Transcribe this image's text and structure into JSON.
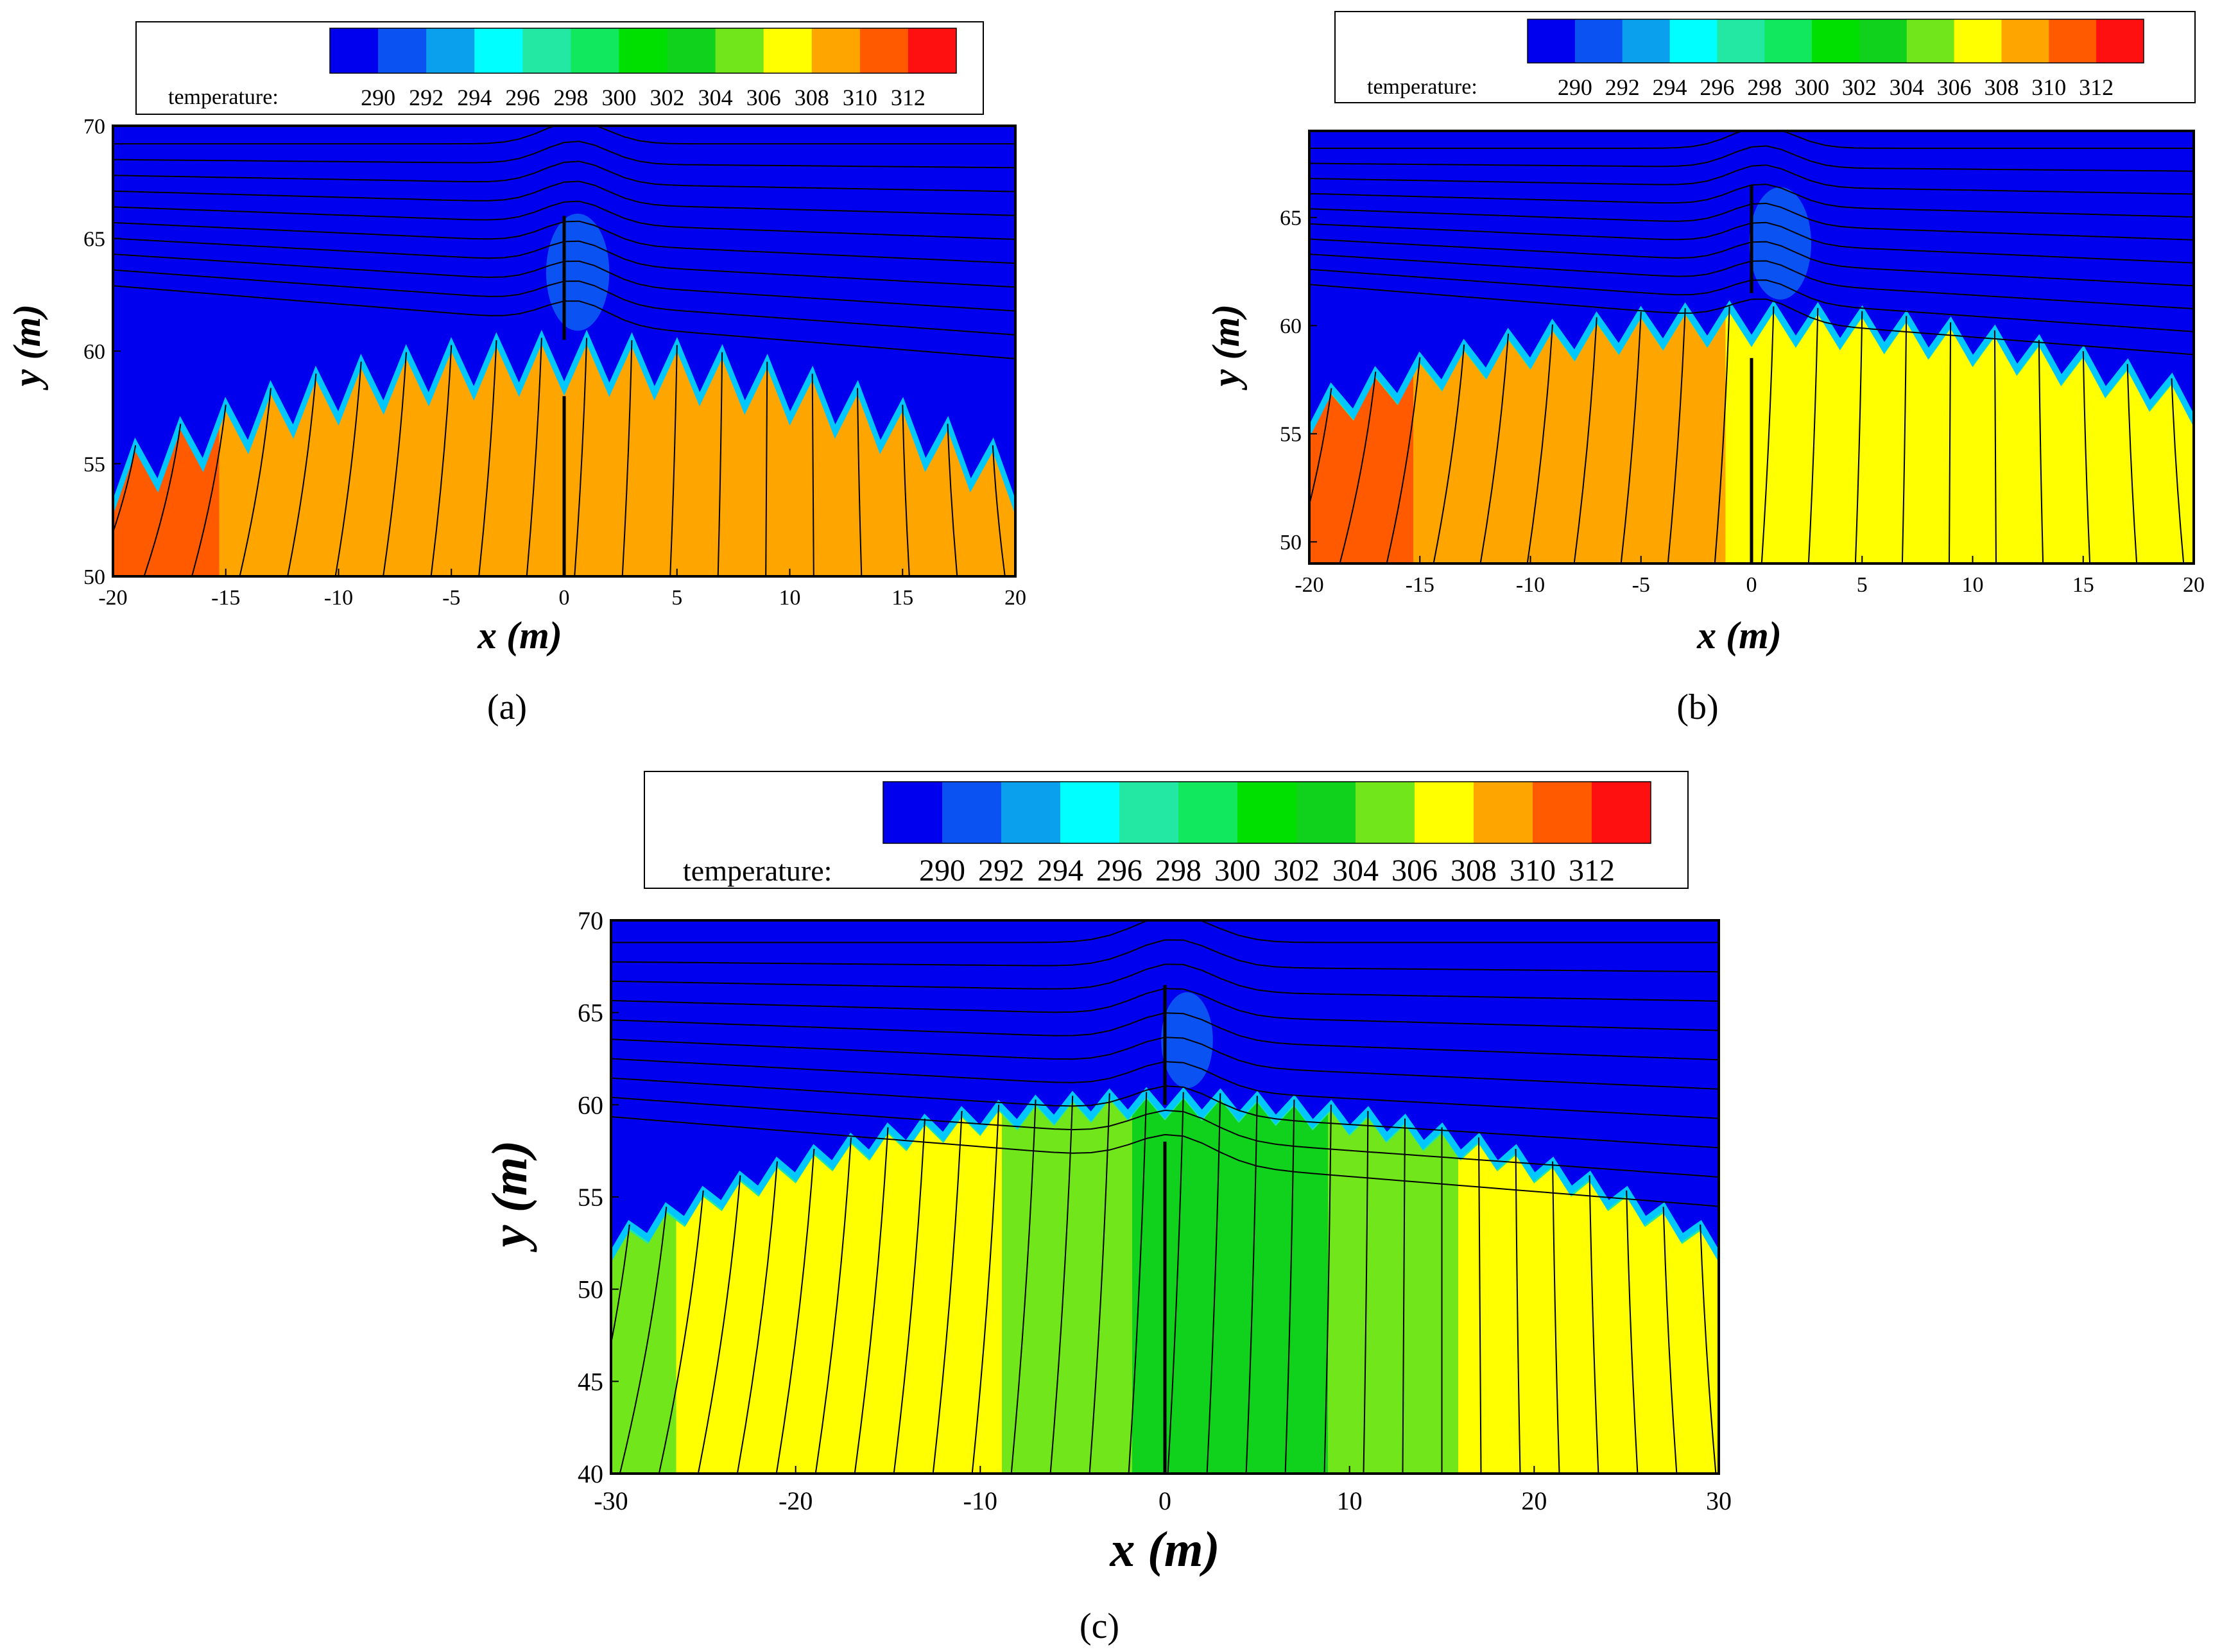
{
  "colorbar": {
    "label": "temperature:",
    "ticks": [
      "290",
      "292",
      "294",
      "296",
      "298",
      "300",
      "302",
      "304",
      "306",
      "308",
      "310",
      "312"
    ],
    "colors": [
      "#0000ee",
      "#0b52f2",
      "#0aa0ee",
      "#00ffff",
      "#22e8a4",
      "#12e85e",
      "#00e000",
      "#10d11b",
      "#70e61b",
      "#ffff00",
      "#ffa500",
      "#ff5a00",
      "#ff1010"
    ]
  },
  "palette": {
    "cold": "#0000ee",
    "frame": "#000000",
    "streamline": "#000000"
  },
  "chart_data": [
    {
      "id": "a",
      "type": "heatmap",
      "caption": "(a)",
      "xlabel": "x (m)",
      "ylabel": "y (m)",
      "xlim": [
        -20,
        20
      ],
      "ylim": [
        50,
        70
      ],
      "xticks": [
        "-20",
        "-15",
        "-10",
        "-5",
        "0",
        "5",
        "10",
        "15",
        "20"
      ],
      "yticks": [
        "50",
        "55",
        "60",
        "65",
        "70"
      ],
      "colorbar_ticks": [
        "290",
        "292",
        "294",
        "296",
        "298",
        "300",
        "302",
        "304",
        "306",
        "308",
        "310",
        "312"
      ],
      "colorbar_label": "temperature:",
      "canopy_profile": {
        "left_y": 55.3,
        "peak_y": 60.6,
        "right_y": 55.3,
        "teeth": 20,
        "tooth_depth_m": 2.3
      },
      "interior_temperature": [
        311,
        310,
        309.5,
        309,
        309,
        309,
        309,
        309,
        309,
        309,
        309,
        309,
        309,
        309,
        309,
        309,
        309
      ],
      "barrier": {
        "x": 0,
        "y_bottom": 50,
        "y_top": 66,
        "gap": [
          58,
          60.5
        ]
      },
      "wake_zone": {
        "x": 0.6,
        "y": 63.5,
        "temp": 291
      }
    },
    {
      "id": "b",
      "type": "heatmap",
      "caption": "(b)",
      "xlabel": "x (m)",
      "ylabel": "y (m)",
      "xlim": [
        -20,
        20
      ],
      "ylim": [
        49,
        69
      ],
      "xticks": [
        "-20",
        "-15",
        "-10",
        "-5",
        "0",
        "5",
        "10",
        "15",
        "20"
      ],
      "yticks": [
        "50",
        "55",
        "60",
        "65"
      ],
      "colorbar_ticks": [
        "290",
        "292",
        "294",
        "296",
        "298",
        "300",
        "302",
        "304",
        "306",
        "308",
        "310",
        "312"
      ],
      "colorbar_label": "temperature:",
      "canopy_profile": {
        "left_y": 56.7,
        "peak_y": 60.9,
        "right_y": 57.2,
        "teeth": 20,
        "tooth_depth_m": 1.6
      },
      "interior_temperature": [
        311,
        310,
        309.5,
        309,
        309,
        309,
        309,
        309,
        307,
        307,
        307,
        307,
        307,
        307,
        307,
        307,
        307
      ],
      "barrier": {
        "x": 0,
        "y_bottom": 49,
        "y_top": 66.5,
        "gap": [
          58.5,
          61.5
        ]
      },
      "wake_zone": {
        "x": 1.3,
        "y": 63.8,
        "temp": 291
      }
    },
    {
      "id": "c",
      "type": "heatmap",
      "caption": "(c)",
      "xlabel": "x (m)",
      "ylabel": "y (m)",
      "xlim": [
        -30,
        30
      ],
      "ylim": [
        40,
        70
      ],
      "xticks": [
        "-30",
        "-20",
        "-10",
        "0",
        "10",
        "20",
        "30"
      ],
      "yticks": [
        "40",
        "45",
        "50",
        "55",
        "60",
        "65",
        "70"
      ],
      "colorbar_ticks": [
        "290",
        "292",
        "294",
        "296",
        "298",
        "300",
        "302",
        "304",
        "306",
        "308",
        "310",
        "312"
      ],
      "colorbar_label": "temperature:",
      "canopy_profile": {
        "left_y": 53.0,
        "peak_y": 60.7,
        "right_y": 53.0,
        "teeth": 30,
        "tooth_depth_m": 1.2
      },
      "interior_temperature": [
        304.5,
        307,
        307,
        307,
        307,
        307,
        305,
        305,
        303,
        303,
        303,
        305,
        305,
        307,
        307,
        307,
        307
      ],
      "barrier": {
        "x": 0,
        "y_bottom": 40,
        "y_top": 66.5,
        "gap": [
          58,
          60
        ]
      },
      "wake_zone": {
        "x": 1.2,
        "y": 63.5,
        "temp": 291
      }
    }
  ]
}
